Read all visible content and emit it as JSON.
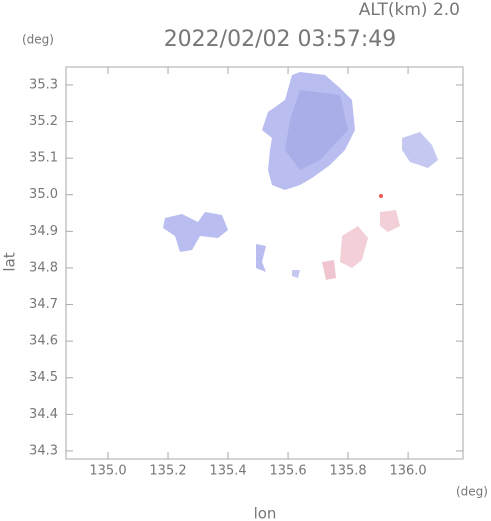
{
  "chart_data": {
    "type": "map",
    "title": "2022/02/02 03:57:49",
    "subtitle": "ALT(km)  2.0",
    "x_label": "lon",
    "y_label": "lat",
    "x_unit": "(deg)",
    "y_unit": "(deg)",
    "xlim": [
      134.86,
      136.183
    ],
    "ylim": [
      34.278,
      35.349
    ],
    "xticks": [
      {
        "value": 135,
        "label": "135.0"
      },
      135.2,
      135.4,
      135.6,
      135.8,
      {
        "value": 136,
        "label": "136.0"
      }
    ],
    "yticks": [
      34.3,
      34.4,
      34.5,
      34.6,
      34.7,
      34.8,
      34.9,
      {
        "value": 35,
        "label": "35.0"
      },
      35.1,
      35.2,
      35.3
    ]
  }
}
